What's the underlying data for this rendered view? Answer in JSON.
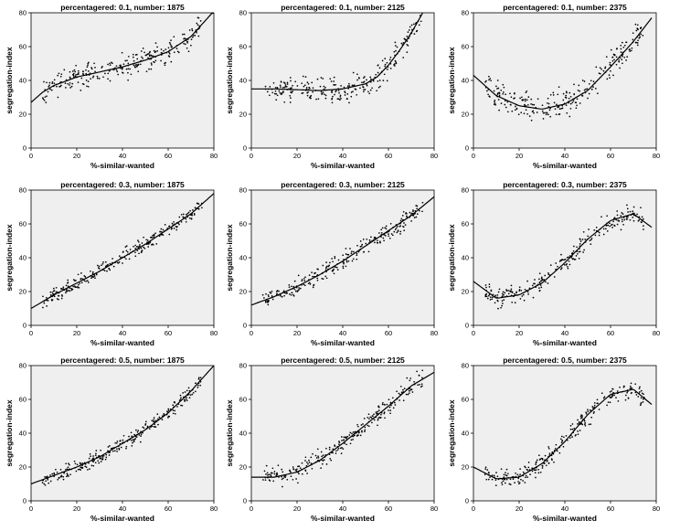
{
  "chart_data": [
    {
      "type": "scatter",
      "title": "percentagered: 0.1, number: 1875",
      "xlabel": "%-similar-wanted",
      "ylabel": "segregation-index",
      "xlim": [
        0,
        80
      ],
      "ylim": [
        0,
        80
      ],
      "xticks": [
        0,
        20,
        40,
        60,
        80
      ],
      "yticks": [
        0,
        20,
        40,
        60,
        80
      ],
      "grid": false,
      "fit_line": [
        [
          0,
          27
        ],
        [
          5,
          33
        ],
        [
          10,
          37
        ],
        [
          20,
          42
        ],
        [
          30,
          45
        ],
        [
          40,
          48
        ],
        [
          50,
          52
        ],
        [
          60,
          57
        ],
        [
          70,
          66
        ],
        [
          80,
          81
        ]
      ],
      "point_band": {
        "x_range": [
          5,
          75
        ],
        "spread": 5
      }
    },
    {
      "type": "scatter",
      "title": "percentagered: 0.1, number: 2125",
      "xlabel": "%-similar-wanted",
      "ylabel": "segregation-index",
      "xlim": [
        0,
        80
      ],
      "ylim": [
        0,
        80
      ],
      "xticks": [
        0,
        20,
        40,
        60,
        80
      ],
      "yticks": [
        0,
        20,
        40,
        60,
        80
      ],
      "grid": false,
      "fit_line": [
        [
          0,
          35
        ],
        [
          10,
          35
        ],
        [
          20,
          34.5
        ],
        [
          30,
          34
        ],
        [
          40,
          35
        ],
        [
          50,
          38
        ],
        [
          55,
          42
        ],
        [
          60,
          49
        ],
        [
          65,
          58
        ],
        [
          70,
          68
        ],
        [
          75,
          80
        ]
      ],
      "point_band": {
        "x_range": [
          5,
          75
        ],
        "spread": 5
      }
    },
    {
      "type": "scatter",
      "title": "percentagered: 0.1, number: 2375",
      "xlabel": "%-similar-wanted",
      "ylabel": "segregation-index",
      "xlim": [
        0,
        80
      ],
      "ylim": [
        0,
        80
      ],
      "xticks": [
        0,
        20,
        40,
        60,
        80
      ],
      "yticks": [
        0,
        20,
        40,
        60,
        80
      ],
      "grid": false,
      "fit_line": [
        [
          0,
          43
        ],
        [
          10,
          31
        ],
        [
          20,
          25
        ],
        [
          30,
          23
        ],
        [
          40,
          26
        ],
        [
          50,
          34
        ],
        [
          60,
          48
        ],
        [
          70,
          63
        ],
        [
          78,
          77
        ]
      ],
      "point_band": {
        "x_range": [
          5,
          75
        ],
        "spread": 6
      }
    },
    {
      "type": "scatter",
      "title": "percentagered: 0.3, number: 1875",
      "xlabel": "%-similar-wanted",
      "ylabel": "segregation-index",
      "xlim": [
        0,
        80
      ],
      "ylim": [
        0,
        80
      ],
      "xticks": [
        0,
        20,
        40,
        60,
        80
      ],
      "yticks": [
        0,
        20,
        40,
        60,
        80
      ],
      "grid": false,
      "fit_line": [
        [
          0,
          10
        ],
        [
          10,
          18
        ],
        [
          20,
          25
        ],
        [
          30,
          32
        ],
        [
          40,
          40
        ],
        [
          50,
          48
        ],
        [
          60,
          57
        ],
        [
          70,
          66
        ],
        [
          80,
          78
        ]
      ],
      "point_band": {
        "x_range": [
          5,
          75
        ],
        "spread": 3
      }
    },
    {
      "type": "scatter",
      "title": "percentagered: 0.3, number: 2125",
      "xlabel": "%-similar-wanted",
      "ylabel": "segregation-index",
      "xlim": [
        0,
        80
      ],
      "ylim": [
        0,
        80
      ],
      "xticks": [
        0,
        20,
        40,
        60,
        80
      ],
      "yticks": [
        0,
        20,
        40,
        60,
        80
      ],
      "grid": false,
      "fit_line": [
        [
          0,
          12
        ],
        [
          10,
          17
        ],
        [
          20,
          23
        ],
        [
          30,
          30
        ],
        [
          40,
          38
        ],
        [
          50,
          47
        ],
        [
          60,
          56
        ],
        [
          70,
          65
        ],
        [
          80,
          76
        ]
      ],
      "point_band": {
        "x_range": [
          5,
          75
        ],
        "spread": 4
      }
    },
    {
      "type": "scatter",
      "title": "percentagered: 0.3, number: 2375",
      "xlabel": "%-similar-wanted",
      "ylabel": "segregation-index",
      "xlim": [
        0,
        80
      ],
      "ylim": [
        0,
        80
      ],
      "xticks": [
        0,
        20,
        40,
        60,
        80
      ],
      "yticks": [
        0,
        20,
        40,
        60,
        80
      ],
      "grid": false,
      "fit_line": [
        [
          0,
          26
        ],
        [
          10,
          16
        ],
        [
          20,
          18
        ],
        [
          30,
          25
        ],
        [
          40,
          37
        ],
        [
          50,
          51
        ],
        [
          60,
          62
        ],
        [
          70,
          66
        ],
        [
          78,
          58
        ]
      ],
      "point_band": {
        "x_range": [
          5,
          75
        ],
        "spread": 4
      }
    },
    {
      "type": "scatter",
      "title": "percentagered: 0.5, number: 1875",
      "xlabel": "%-similar-wanted",
      "ylabel": "segregation-index",
      "xlim": [
        0,
        80
      ],
      "ylim": [
        0,
        80
      ],
      "xticks": [
        0,
        20,
        40,
        60,
        80
      ],
      "yticks": [
        0,
        20,
        40,
        60,
        80
      ],
      "grid": false,
      "fit_line": [
        [
          0,
          10
        ],
        [
          10,
          15
        ],
        [
          20,
          20
        ],
        [
          30,
          26
        ],
        [
          40,
          34
        ],
        [
          50,
          42
        ],
        [
          60,
          52
        ],
        [
          70,
          65
        ],
        [
          80,
          80
        ]
      ],
      "point_band": {
        "x_range": [
          5,
          75
        ],
        "spread": 3
      }
    },
    {
      "type": "scatter",
      "title": "percentagered: 0.5, number: 2125",
      "xlabel": "%-similar-wanted",
      "ylabel": "segregation-index",
      "xlim": [
        0,
        80
      ],
      "ylim": [
        0,
        80
      ],
      "xticks": [
        0,
        20,
        40,
        60,
        80
      ],
      "yticks": [
        0,
        20,
        40,
        60,
        80
      ],
      "grid": false,
      "fit_line": [
        [
          0,
          14
        ],
        [
          10,
          14
        ],
        [
          20,
          17
        ],
        [
          30,
          24
        ],
        [
          40,
          34
        ],
        [
          50,
          45
        ],
        [
          60,
          56
        ],
        [
          70,
          68
        ],
        [
          80,
          76
        ]
      ],
      "point_band": {
        "x_range": [
          5,
          75
        ],
        "spread": 4
      }
    },
    {
      "type": "scatter",
      "title": "percentagered: 0.5, number: 2375",
      "xlabel": "%-similar-wanted",
      "ylabel": "segregation-index",
      "xlim": [
        0,
        80
      ],
      "ylim": [
        0,
        80
      ],
      "xticks": [
        0,
        20,
        40,
        60,
        80
      ],
      "yticks": [
        0,
        20,
        40,
        60,
        80
      ],
      "grid": false,
      "fit_line": [
        [
          0,
          20
        ],
        [
          10,
          13
        ],
        [
          20,
          14
        ],
        [
          30,
          22
        ],
        [
          40,
          35
        ],
        [
          50,
          51
        ],
        [
          60,
          63
        ],
        [
          70,
          66
        ],
        [
          78,
          57
        ]
      ],
      "point_band": {
        "x_range": [
          5,
          75
        ],
        "spread": 4
      }
    }
  ]
}
